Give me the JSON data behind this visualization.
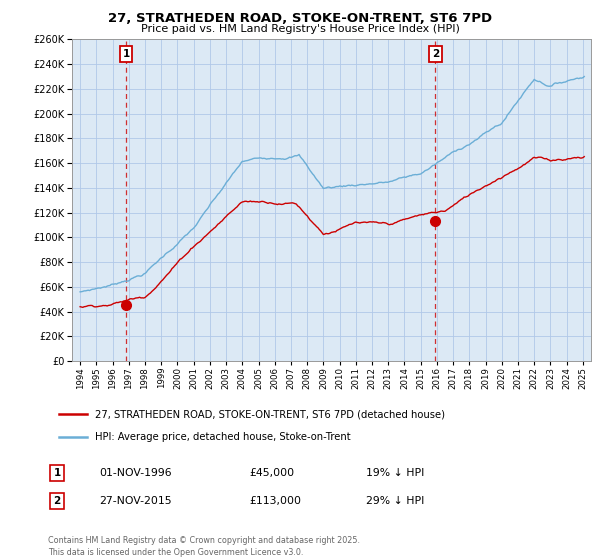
{
  "title1": "27, STRATHEDEN ROAD, STOKE-ON-TRENT, ST6 7PD",
  "title2": "Price paid vs. HM Land Registry's House Price Index (HPI)",
  "legend_label1": "27, STRATHEDEN ROAD, STOKE-ON-TRENT, ST6 7PD (detached house)",
  "legend_label2": "HPI: Average price, detached house, Stoke-on-Trent",
  "annotation1_date": "01-NOV-1996",
  "annotation1_price": "£45,000",
  "annotation1_hpi": "19% ↓ HPI",
  "annotation2_date": "27-NOV-2015",
  "annotation2_price": "£113,000",
  "annotation2_hpi": "29% ↓ HPI",
  "footer": "Contains HM Land Registry data © Crown copyright and database right 2025.\nThis data is licensed under the Open Government Licence v3.0.",
  "sale1_year": 1996.83,
  "sale1_price": 45000,
  "sale2_year": 2015.9,
  "sale2_price": 113000,
  "hpi_color": "#6baed6",
  "price_color": "#cc0000",
  "dashed_color": "#cc0000",
  "background_color": "#ffffff",
  "plot_bg_color": "#dce9f5",
  "grid_color": "#b0c8e8",
  "ylim": [
    0,
    260000
  ],
  "xlim_start": 1993.5,
  "xlim_end": 2025.5
}
